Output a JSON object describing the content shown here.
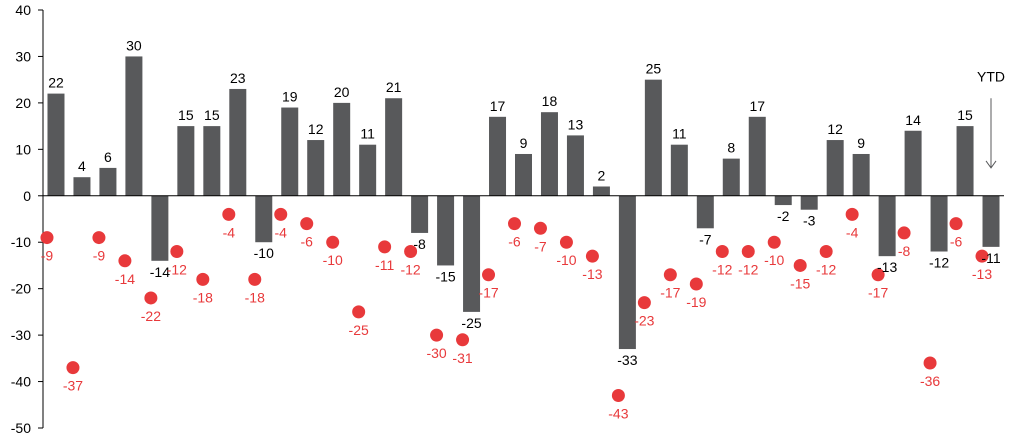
{
  "chart_data": {
    "type": "bar",
    "title": "",
    "xlabel": "",
    "ylabel": "",
    "ylim": [
      -50,
      40
    ],
    "yticks": [
      40,
      30,
      20,
      10,
      0,
      -10,
      -20,
      -30,
      -40,
      -50
    ],
    "grid": false,
    "colors": {
      "bars": "#58595b",
      "dots": "#e8393b",
      "axis": "#000000"
    },
    "series": [
      {
        "type": "bar",
        "values": [
          22,
          4,
          6,
          30,
          -14,
          15,
          15,
          23,
          -10,
          19,
          12,
          20,
          11,
          21,
          -8,
          -15,
          -25,
          17,
          9,
          18,
          13,
          2,
          -33,
          25,
          11,
          -7,
          8,
          17,
          -2,
          -3,
          12,
          9,
          -13,
          14,
          -12,
          15,
          -11
        ]
      },
      {
        "type": "scatter",
        "values": [
          -9,
          -37,
          -9,
          -14,
          -22,
          -12,
          -18,
          -4,
          -18,
          -4,
          -6,
          -10,
          -25,
          -11,
          -12,
          -30,
          -31,
          -17,
          -6,
          -7,
          -10,
          -13,
          -43,
          -23,
          -17,
          -19,
          -12,
          -12,
          -10,
          -15,
          -12,
          -4,
          -17,
          -8,
          -36,
          -6,
          -13
        ]
      }
    ],
    "annotation": {
      "text": "YTD",
      "points_to": "last bar"
    }
  }
}
